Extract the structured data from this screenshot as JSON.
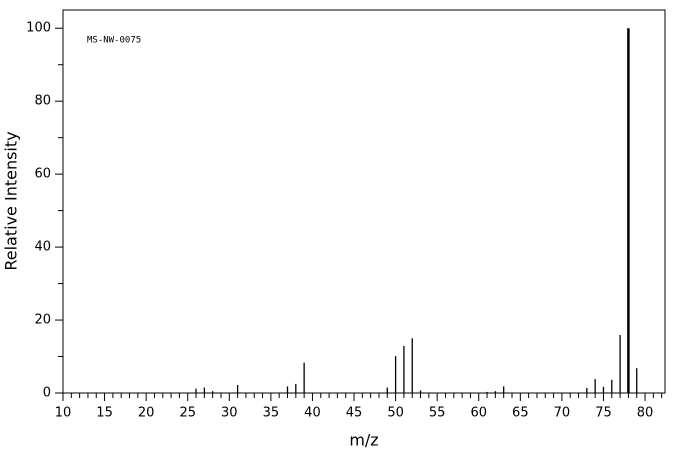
{
  "chart_data": {
    "type": "stem",
    "annotation": "MS-NW-0075",
    "x_label": "m/z",
    "y_label": "Relative Intensity",
    "x": [
      26,
      27,
      28,
      31,
      37,
      38,
      39,
      49,
      50,
      51,
      52,
      53,
      61,
      62,
      63,
      73,
      74,
      75,
      76,
      77,
      78,
      79
    ],
    "values": [
      1.2,
      1.5,
      0.5,
      2.2,
      1.8,
      2.5,
      8.3,
      1.5,
      10.1,
      12.9,
      15.0,
      0.7,
      0.3,
      0.5,
      1.8,
      1.4,
      3.8,
      1.7,
      3.6,
      15.9,
      100,
      6.8
    ],
    "color": "#000000",
    "xlim": [
      10,
      82.4
    ],
    "ylim": [
      0,
      105
    ],
    "xticks": [
      10,
      15,
      20,
      25,
      30,
      35,
      40,
      45,
      50,
      55,
      60,
      65,
      70,
      75,
      80
    ],
    "xminorticks": [
      11,
      12,
      13,
      14,
      16,
      17,
      18,
      19,
      21,
      22,
      23,
      24,
      26,
      27,
      28,
      29,
      31,
      32,
      33,
      34,
      36,
      37,
      38,
      39,
      41,
      42,
      43,
      44,
      46,
      47,
      48,
      49,
      51,
      52,
      53,
      54,
      56,
      57,
      58,
      59,
      61,
      62,
      63,
      64,
      66,
      67,
      68,
      69,
      71,
      72,
      73,
      74,
      76,
      77,
      78,
      79,
      81,
      82
    ],
    "yticks": [
      0,
      20,
      40,
      60,
      80,
      100
    ],
    "yminorticks": [
      10,
      30,
      50,
      70,
      90
    ]
  }
}
